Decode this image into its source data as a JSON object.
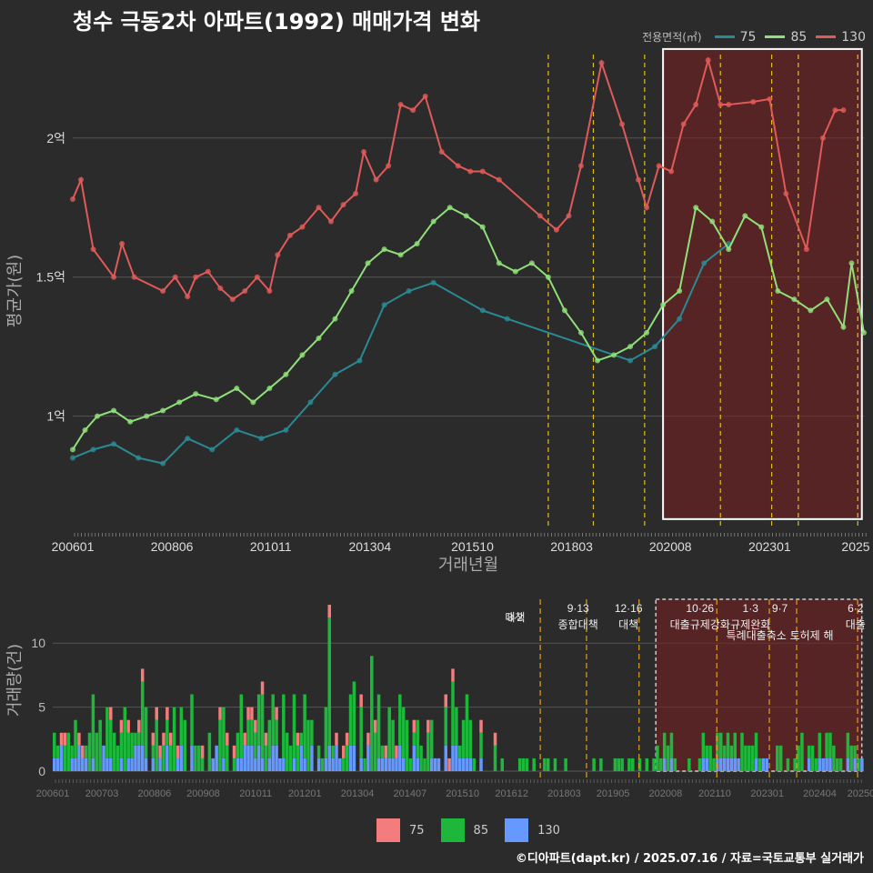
{
  "title": "청수 극동2차 아파트(1992) 매매가격 변화",
  "legend": {
    "label": "전용면적(㎡)",
    "items": [
      {
        "name": "75",
        "color": "#2a8a94"
      },
      {
        "name": "85",
        "color": "#90e07a"
      },
      {
        "name": "130",
        "color": "#e05a5a"
      }
    ]
  },
  "bottom_legend": [
    {
      "name": "75",
      "color": "#f47c7c"
    },
    {
      "name": "85",
      "color": "#1db83b"
    },
    {
      "name": "130",
      "color": "#6699ff"
    }
  ],
  "footer": "©디아파트(dapt.kr) / 2025.07.16 / 자료=국토교통부 실거래가",
  "chart_data": [
    {
      "type": "line",
      "title": "청수 극동2차 아파트(1992) 매매가격 변화",
      "xlabel": "거래년월",
      "ylabel": "평균가(원)",
      "x_ticks": [
        "200601",
        "200806",
        "201011",
        "201304",
        "201510",
        "201803",
        "202008",
        "202301",
        "2025"
      ],
      "y_ticks": [
        "1억",
        "1.5억",
        "2억"
      ],
      "ylim": [
        0.6,
        2.3
      ],
      "series": [
        {
          "name": "130",
          "color": "#e05a5a",
          "x": [
            2006.0,
            2006.2,
            2006.5,
            2007.0,
            2007.2,
            2007.5,
            2008.2,
            2008.5,
            2008.8,
            2009.0,
            2009.3,
            2009.6,
            2009.9,
            2010.2,
            2010.5,
            2010.8,
            2011.0,
            2011.3,
            2011.6,
            2012.0,
            2012.3,
            2012.6,
            2012.9,
            2013.1,
            2013.4,
            2013.7,
            2014.0,
            2014.3,
            2014.6,
            2015.0,
            2015.4,
            2015.7,
            2016.0,
            2016.4,
            2017.4,
            2017.8,
            2018.1,
            2018.4,
            2018.9,
            2019.4,
            2019.8,
            2020.0,
            2020.3,
            2020.6,
            2020.9,
            2021.2,
            2021.5,
            2021.8,
            2022.0,
            2022.6,
            2023.0,
            2023.4,
            2023.9,
            2024.3,
            2024.6,
            2024.8
          ],
          "y": [
            1.78,
            1.85,
            1.6,
            1.5,
            1.62,
            1.5,
            1.45,
            1.5,
            1.43,
            1.5,
            1.52,
            1.46,
            1.42,
            1.45,
            1.5,
            1.45,
            1.58,
            1.65,
            1.68,
            1.75,
            1.7,
            1.76,
            1.8,
            1.95,
            1.85,
            1.9,
            2.12,
            2.1,
            2.15,
            1.95,
            1.9,
            1.88,
            1.88,
            1.85,
            1.72,
            1.67,
            1.72,
            1.9,
            2.27,
            2.05,
            1.85,
            1.75,
            1.9,
            1.88,
            2.05,
            2.12,
            2.28,
            2.12,
            2.12,
            2.13,
            2.14,
            1.8,
            1.6,
            2.0,
            2.1,
            2.1
          ]
        },
        {
          "name": "85",
          "color": "#90e07a",
          "x": [
            2006.0,
            2006.3,
            2006.6,
            2007.0,
            2007.4,
            2007.8,
            2008.2,
            2008.6,
            2009.0,
            2009.5,
            2010.0,
            2010.4,
            2010.8,
            2011.2,
            2011.6,
            2012.0,
            2012.4,
            2012.8,
            2013.2,
            2013.6,
            2014.0,
            2014.4,
            2014.8,
            2015.2,
            2015.6,
            2016.0,
            2016.4,
            2016.8,
            2017.2,
            2017.6,
            2018.0,
            2018.4,
            2018.8,
            2019.2,
            2019.6,
            2020.0,
            2020.4,
            2020.8,
            2021.2,
            2021.6,
            2022.0,
            2022.4,
            2022.8,
            2023.2,
            2023.6,
            2024.0,
            2024.4,
            2024.8,
            2025.0,
            2025.3
          ],
          "y": [
            0.88,
            0.95,
            1.0,
            1.02,
            0.98,
            1.0,
            1.02,
            1.05,
            1.08,
            1.06,
            1.1,
            1.05,
            1.1,
            1.15,
            1.22,
            1.28,
            1.35,
            1.45,
            1.55,
            1.6,
            1.58,
            1.62,
            1.7,
            1.75,
            1.72,
            1.68,
            1.55,
            1.52,
            1.55,
            1.5,
            1.38,
            1.3,
            1.2,
            1.22,
            1.25,
            1.3,
            1.4,
            1.45,
            1.75,
            1.7,
            1.6,
            1.72,
            1.68,
            1.45,
            1.42,
            1.38,
            1.42,
            1.32,
            1.55,
            1.3
          ]
        },
        {
          "name": "75",
          "color": "#2a8a94",
          "x": [
            2006.0,
            2006.5,
            2007.0,
            2007.6,
            2008.2,
            2008.8,
            2009.4,
            2010.0,
            2010.6,
            2011.2,
            2011.8,
            2012.4,
            2013.0,
            2013.6,
            2014.2,
            2014.8,
            2016.0,
            2016.6,
            2019.6,
            2020.2,
            2020.8,
            2021.4,
            2022.0
          ],
          "y": [
            0.85,
            0.88,
            0.9,
            0.85,
            0.83,
            0.92,
            0.88,
            0.95,
            0.92,
            0.95,
            1.05,
            1.15,
            1.2,
            1.4,
            1.45,
            1.48,
            1.38,
            1.35,
            1.2,
            1.25,
            1.35,
            1.55,
            1.62
          ]
        }
      ],
      "vlines": [
        "8·2 대책",
        "9·13 종합대책",
        "12·16 대책",
        "10·26 대출규제강화",
        "1·3 규제완화",
        "9·7 특례대출축소",
        "6·2 대출"
      ]
    },
    {
      "type": "bar",
      "ylabel": "거래량(건)",
      "x_ticks": [
        "200601",
        "200703",
        "200806",
        "200908",
        "201011",
        "201201",
        "201304",
        "201407",
        "201510",
        "201612",
        "201803",
        "201905",
        "202008",
        "202110",
        "202301",
        "202404",
        "202506"
      ],
      "y_ticks": [
        "0",
        "5",
        "10"
      ],
      "ylim": [
        0,
        13
      ],
      "annotations": [
        {
          "date": "8·2",
          "text": "대책"
        },
        {
          "date": "9·13",
          "text": "종합대책"
        },
        {
          "date": "12·16",
          "text": "대책"
        },
        {
          "date": "10·26",
          "text": "대출규제강화"
        },
        {
          "date": "1·3",
          "text": "규제완화"
        },
        {
          "date": "9·7",
          "text": "특례대출축소 토허제 해"
        },
        {
          "date": "6·2",
          "text": "대출"
        }
      ],
      "series": [
        {
          "name": "75",
          "color": "#f47c7c"
        },
        {
          "name": "85",
          "color": "#1db83b"
        },
        {
          "name": "130",
          "color": "#6699ff"
        }
      ]
    }
  ]
}
